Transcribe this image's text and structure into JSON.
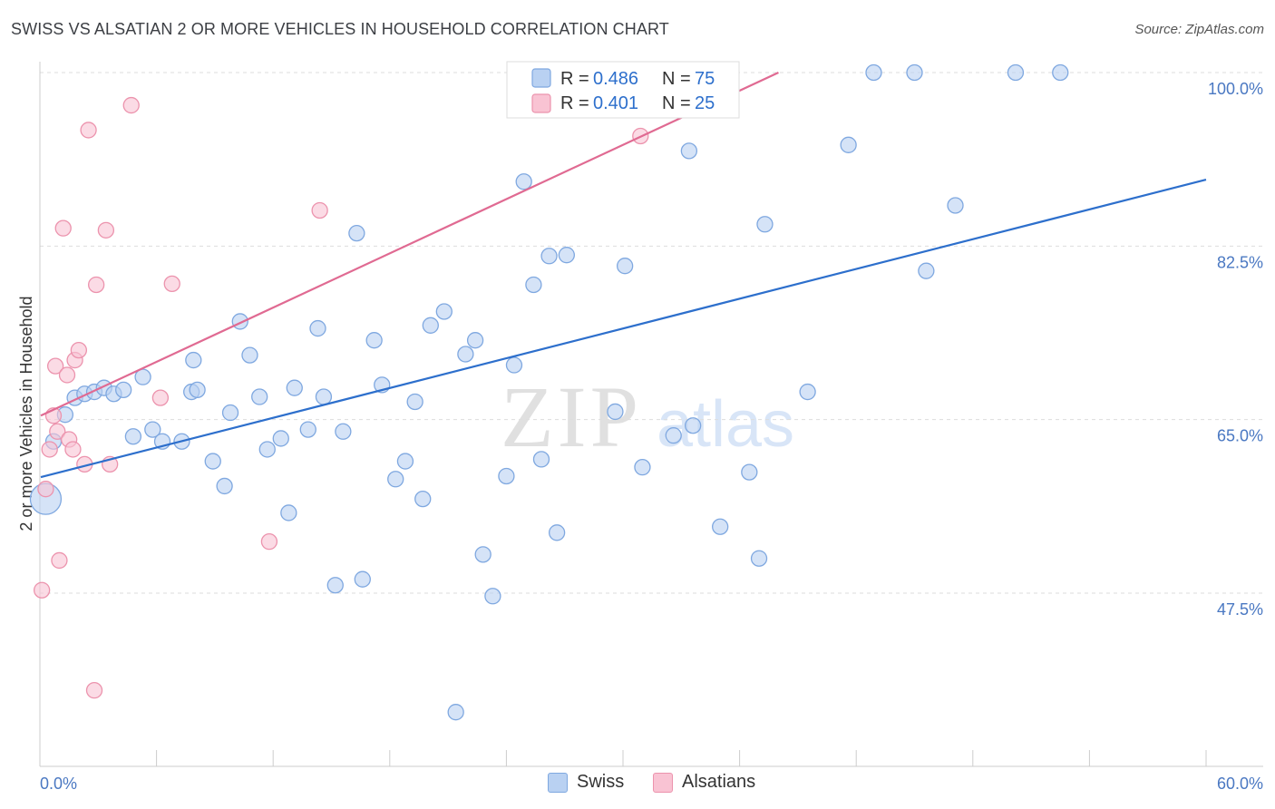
{
  "title": "SWISS VS ALSATIAN 2 OR MORE VEHICLES IN HOUSEHOLD CORRELATION CHART",
  "source": "Source: ZipAtlas.com",
  "watermark": {
    "zip": "ZIP",
    "atlas": "atlas"
  },
  "colors": {
    "swiss_fill": "#b9d1f2",
    "swiss_stroke": "#7fa8e0",
    "swiss_line": "#2d6fcc",
    "alsatian_fill": "#f9c3d3",
    "alsatian_stroke": "#ec93ad",
    "alsatian_line": "#e06a92",
    "tick_text": "#4a78c2",
    "grid": "#dddddd"
  },
  "legend": {
    "swiss": {
      "r_label": "R =",
      "r_value": "0.486",
      "n_label": "N =",
      "n_value": "75"
    },
    "alsatian": {
      "r_label": "R =",
      "r_value": "0.401",
      "n_label": "N =",
      "n_value": "25"
    }
  },
  "bottom_legend": {
    "swiss": "Swiss",
    "alsatian": "Alsatians"
  },
  "chart_data": {
    "type": "scatter",
    "ylabel": "2 or more Vehicles in Household",
    "xlim": [
      0,
      60
    ],
    "ylim": [
      30,
      100
    ],
    "x_tick_labels": {
      "left": "0.0%",
      "right": "60.0%"
    },
    "y_ticks": [
      {
        "value": 47.5,
        "label": "47.5%"
      },
      {
        "value": 65.0,
        "label": "65.0%"
      },
      {
        "value": 82.5,
        "label": "82.5%"
      },
      {
        "value": 100.0,
        "label": "100.0%"
      }
    ],
    "grid": true,
    "series": [
      {
        "name": "Swiss",
        "trend": {
          "x": [
            0,
            60
          ],
          "y": [
            59.2,
            89.2
          ]
        },
        "points": [
          {
            "x": 0.3,
            "y": 57.0,
            "big": true
          },
          {
            "x": 0.7,
            "y": 62.8
          },
          {
            "x": 1.3,
            "y": 65.5
          },
          {
            "x": 1.8,
            "y": 67.2
          },
          {
            "x": 2.3,
            "y": 67.6
          },
          {
            "x": 2.8,
            "y": 67.8
          },
          {
            "x": 3.3,
            "y": 68.2
          },
          {
            "x": 3.8,
            "y": 67.6
          },
          {
            "x": 4.3,
            "y": 68.0
          },
          {
            "x": 4.8,
            "y": 63.3
          },
          {
            "x": 5.3,
            "y": 69.3
          },
          {
            "x": 5.8,
            "y": 64.0
          },
          {
            "x": 6.3,
            "y": 62.8
          },
          {
            "x": 7.3,
            "y": 62.8
          },
          {
            "x": 7.8,
            "y": 67.8
          },
          {
            "x": 7.9,
            "y": 71.0
          },
          {
            "x": 8.1,
            "y": 68.0
          },
          {
            "x": 8.9,
            "y": 60.8
          },
          {
            "x": 9.5,
            "y": 58.3
          },
          {
            "x": 9.8,
            "y": 65.7
          },
          {
            "x": 10.3,
            "y": 74.9
          },
          {
            "x": 10.8,
            "y": 71.5
          },
          {
            "x": 11.3,
            "y": 67.3
          },
          {
            "x": 11.7,
            "y": 62.0
          },
          {
            "x": 12.4,
            "y": 63.1
          },
          {
            "x": 12.8,
            "y": 55.6
          },
          {
            "x": 13.1,
            "y": 68.2
          },
          {
            "x": 13.8,
            "y": 64.0
          },
          {
            "x": 14.3,
            "y": 74.2
          },
          {
            "x": 14.6,
            "y": 67.3
          },
          {
            "x": 15.2,
            "y": 48.3
          },
          {
            "x": 15.6,
            "y": 63.8
          },
          {
            "x": 16.3,
            "y": 83.8
          },
          {
            "x": 16.6,
            "y": 48.9
          },
          {
            "x": 17.2,
            "y": 73.0
          },
          {
            "x": 17.6,
            "y": 68.5
          },
          {
            "x": 18.3,
            "y": 59.0
          },
          {
            "x": 18.8,
            "y": 60.8
          },
          {
            "x": 19.3,
            "y": 66.8
          },
          {
            "x": 19.7,
            "y": 57.0
          },
          {
            "x": 20.1,
            "y": 74.5
          },
          {
            "x": 20.8,
            "y": 75.9
          },
          {
            "x": 21.4,
            "y": 35.5
          },
          {
            "x": 21.9,
            "y": 71.6
          },
          {
            "x": 22.4,
            "y": 73.0
          },
          {
            "x": 22.8,
            "y": 51.4
          },
          {
            "x": 23.3,
            "y": 47.2
          },
          {
            "x": 24.0,
            "y": 59.3
          },
          {
            "x": 24.4,
            "y": 70.5
          },
          {
            "x": 24.9,
            "y": 89.0
          },
          {
            "x": 25.4,
            "y": 78.6
          },
          {
            "x": 25.8,
            "y": 61.0
          },
          {
            "x": 26.2,
            "y": 81.5
          },
          {
            "x": 26.6,
            "y": 53.6
          },
          {
            "x": 27.1,
            "y": 81.6
          },
          {
            "x": 29.6,
            "y": 65.8
          },
          {
            "x": 30.1,
            "y": 80.5
          },
          {
            "x": 31.0,
            "y": 60.2
          },
          {
            "x": 32.0,
            "y": 100.0
          },
          {
            "x": 32.6,
            "y": 63.4
          },
          {
            "x": 33.4,
            "y": 92.1
          },
          {
            "x": 33.6,
            "y": 64.4
          },
          {
            "x": 35.0,
            "y": 54.2
          },
          {
            "x": 35.5,
            "y": 96.9
          },
          {
            "x": 36.5,
            "y": 59.7
          },
          {
            "x": 37.0,
            "y": 51.0
          },
          {
            "x": 37.3,
            "y": 84.7
          },
          {
            "x": 39.5,
            "y": 67.8
          },
          {
            "x": 41.6,
            "y": 92.7
          },
          {
            "x": 42.9,
            "y": 100.0
          },
          {
            "x": 45.0,
            "y": 100.0
          },
          {
            "x": 45.6,
            "y": 80.0
          },
          {
            "x": 47.1,
            "y": 86.6
          },
          {
            "x": 50.2,
            "y": 100.0
          },
          {
            "x": 52.5,
            "y": 100.0
          }
        ]
      },
      {
        "name": "Alsatians",
        "trend": {
          "x": [
            0,
            38
          ],
          "y": [
            65.4,
            100.0
          ]
        },
        "points": [
          {
            "x": 0.1,
            "y": 47.8
          },
          {
            "x": 0.3,
            "y": 58.0
          },
          {
            "x": 0.5,
            "y": 62.0
          },
          {
            "x": 0.7,
            "y": 65.4
          },
          {
            "x": 0.8,
            "y": 70.4
          },
          {
            "x": 0.9,
            "y": 63.8
          },
          {
            "x": 1.0,
            "y": 50.8
          },
          {
            "x": 1.2,
            "y": 84.3
          },
          {
            "x": 1.4,
            "y": 69.5
          },
          {
            "x": 1.5,
            "y": 63.0
          },
          {
            "x": 1.7,
            "y": 62.0
          },
          {
            "x": 1.8,
            "y": 71.0
          },
          {
            "x": 2.0,
            "y": 72.0
          },
          {
            "x": 2.3,
            "y": 60.5
          },
          {
            "x": 2.5,
            "y": 94.2
          },
          {
            "x": 2.8,
            "y": 37.7
          },
          {
            "x": 2.9,
            "y": 78.6
          },
          {
            "x": 3.4,
            "y": 84.1
          },
          {
            "x": 3.6,
            "y": 60.5
          },
          {
            "x": 4.7,
            "y": 96.7
          },
          {
            "x": 6.2,
            "y": 67.2
          },
          {
            "x": 6.8,
            "y": 78.7
          },
          {
            "x": 11.8,
            "y": 52.7
          },
          {
            "x": 14.4,
            "y": 86.1
          },
          {
            "x": 30.9,
            "y": 93.6
          }
        ]
      }
    ]
  }
}
